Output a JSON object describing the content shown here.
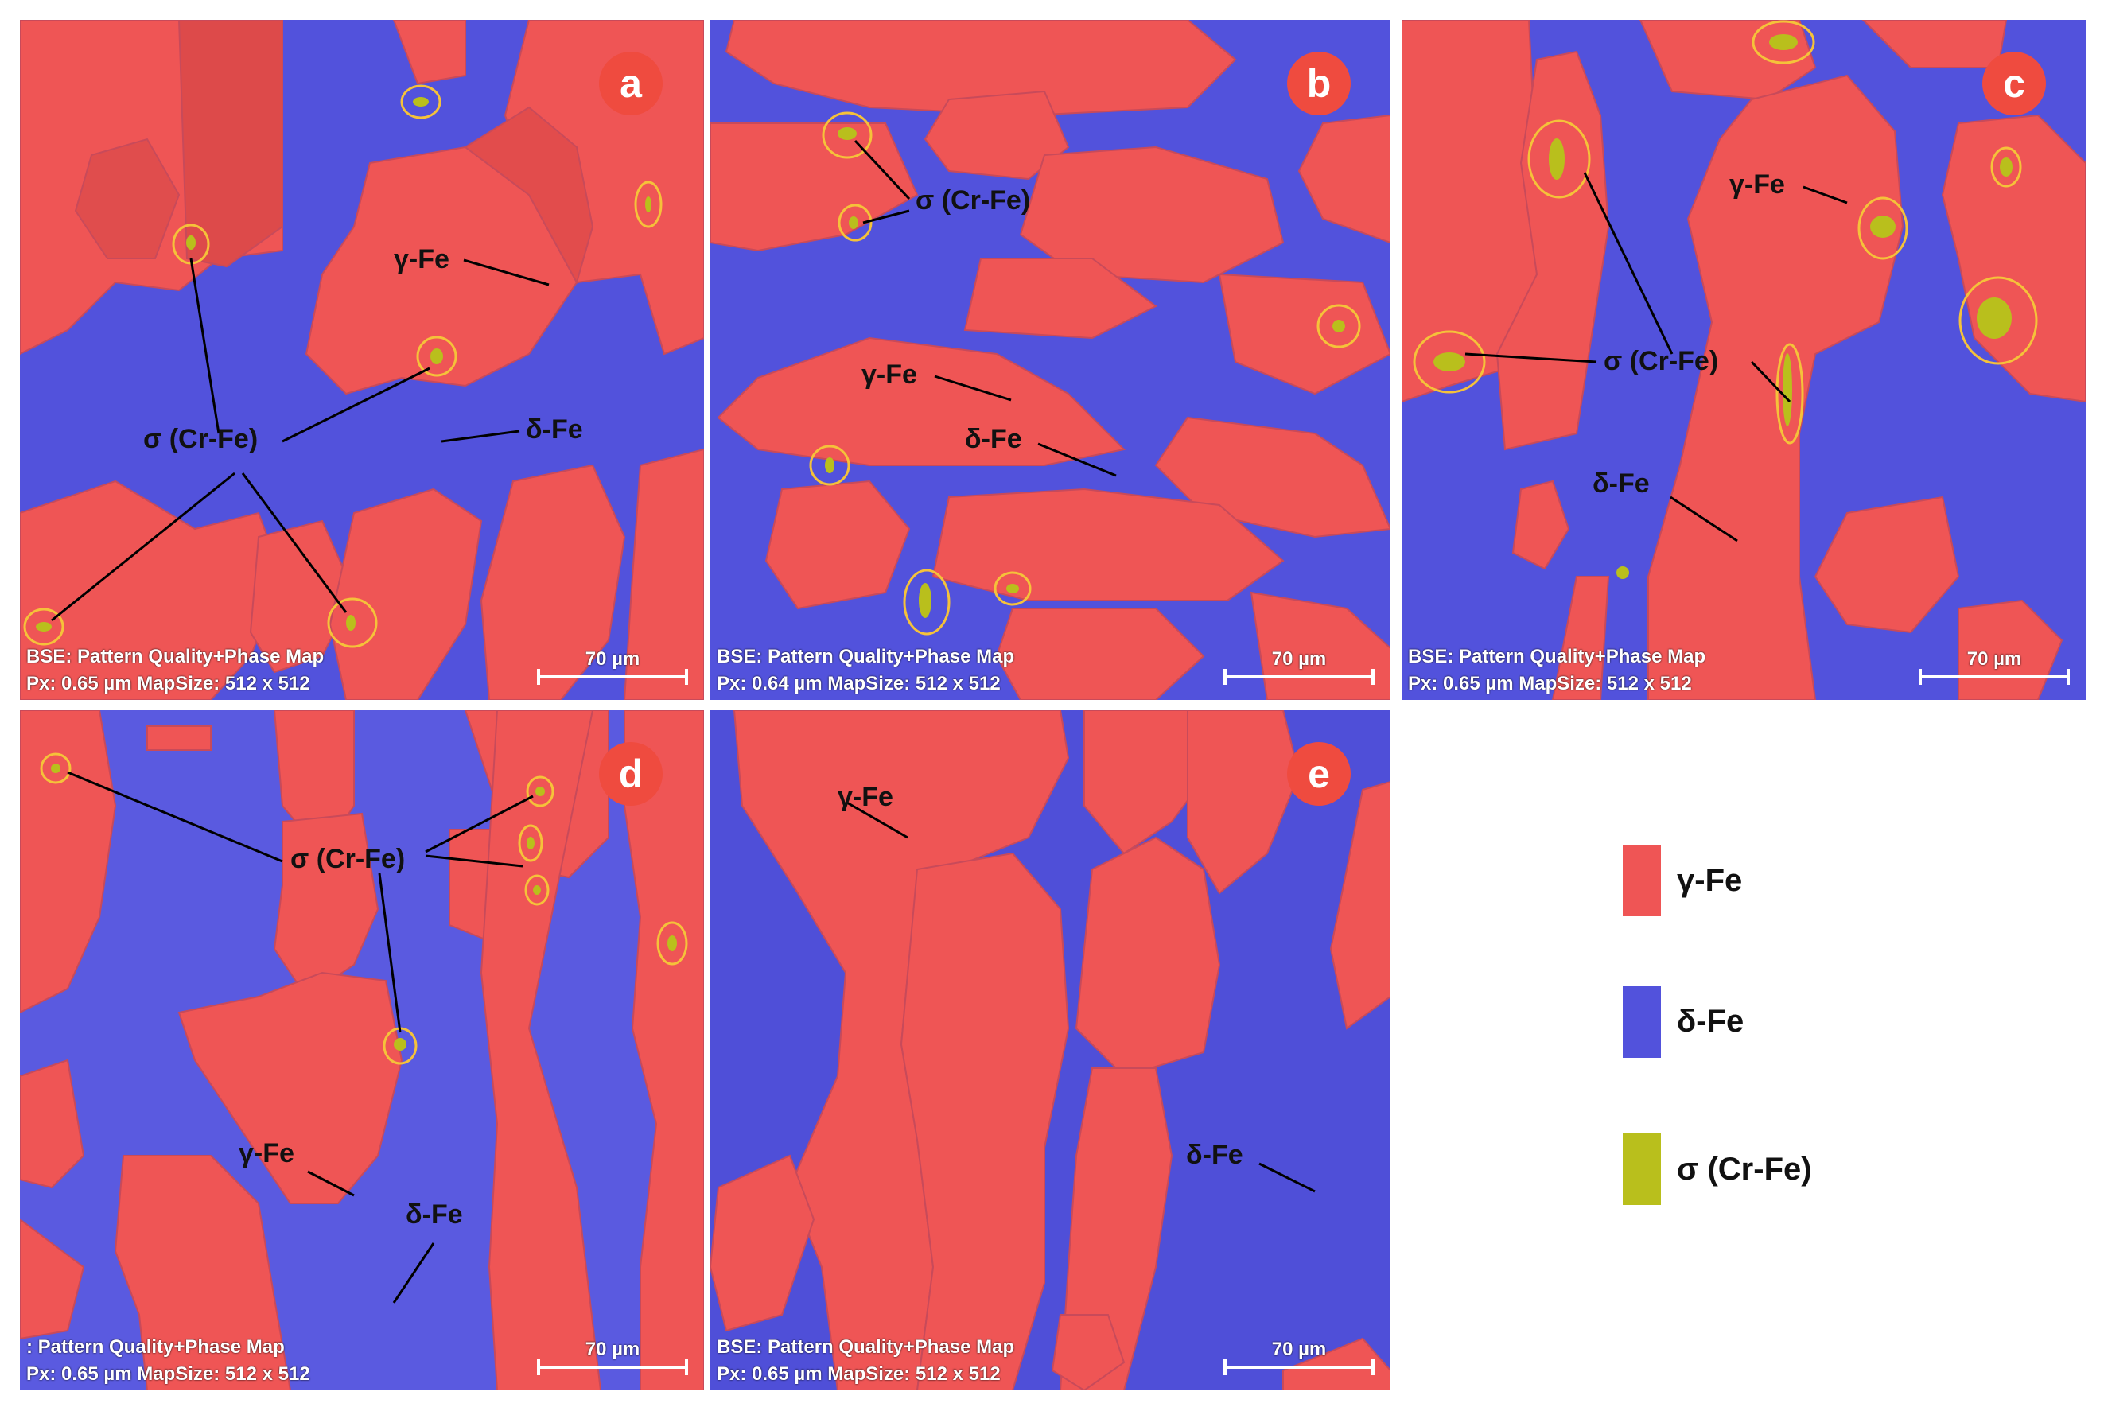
{
  "colors": {
    "gamma": "#ef5555",
    "delta": "#5252dc",
    "sigma": "#b9bf1c",
    "badge": "#ef4b3f"
  },
  "panels": [
    {
      "letter": "a",
      "caption1": "BSE: Pattern Quality+Phase Map",
      "caption2": "Px: 0.65 µm  MapSize: 512 x 512",
      "scale": "70 µm",
      "labels": {
        "sigma": "σ (Cr-Fe)",
        "gamma": "γ-Fe",
        "delta": "δ-Fe"
      }
    },
    {
      "letter": "b",
      "caption1": "BSE: Pattern Quality+Phase Map",
      "caption2": "Px: 0.64 µm  MapSize: 512 x 512",
      "scale": "70 µm",
      "labels": {
        "sigma": "σ (Cr-Fe)",
        "gamma": "γ-Fe",
        "delta": "δ-Fe"
      }
    },
    {
      "letter": "c",
      "caption1": "BSE: Pattern Quality+Phase Map",
      "caption2": "Px: 0.65 µm  MapSize: 512 x 512",
      "scale": "70 µm",
      "labels": {
        "sigma": "σ (Cr-Fe)",
        "gamma": "γ-Fe",
        "delta": "δ-Fe"
      }
    },
    {
      "letter": "d",
      "caption1": ": Pattern Quality+Phase Map",
      "caption2": "Px: 0.65 µm  MapSize: 512 x 512",
      "scale": "70 µm",
      "labels": {
        "sigma": "σ (Cr-Fe)",
        "gamma": "γ-Fe",
        "delta": "δ-Fe"
      }
    },
    {
      "letter": "e",
      "caption1": "BSE: Pattern Quality+Phase Map",
      "caption2": "Px: 0.65 µm  MapSize: 512 x 512",
      "scale": "70 µm",
      "labels": {
        "gamma": "γ-Fe",
        "delta": "δ-Fe"
      }
    }
  ],
  "legend": [
    {
      "name": "γ-Fe",
      "color": "#ef5555"
    },
    {
      "name": "δ-Fe",
      "color": "#5252dc"
    },
    {
      "name": "σ (Cr-Fe)",
      "color": "#b9bf1c"
    }
  ]
}
